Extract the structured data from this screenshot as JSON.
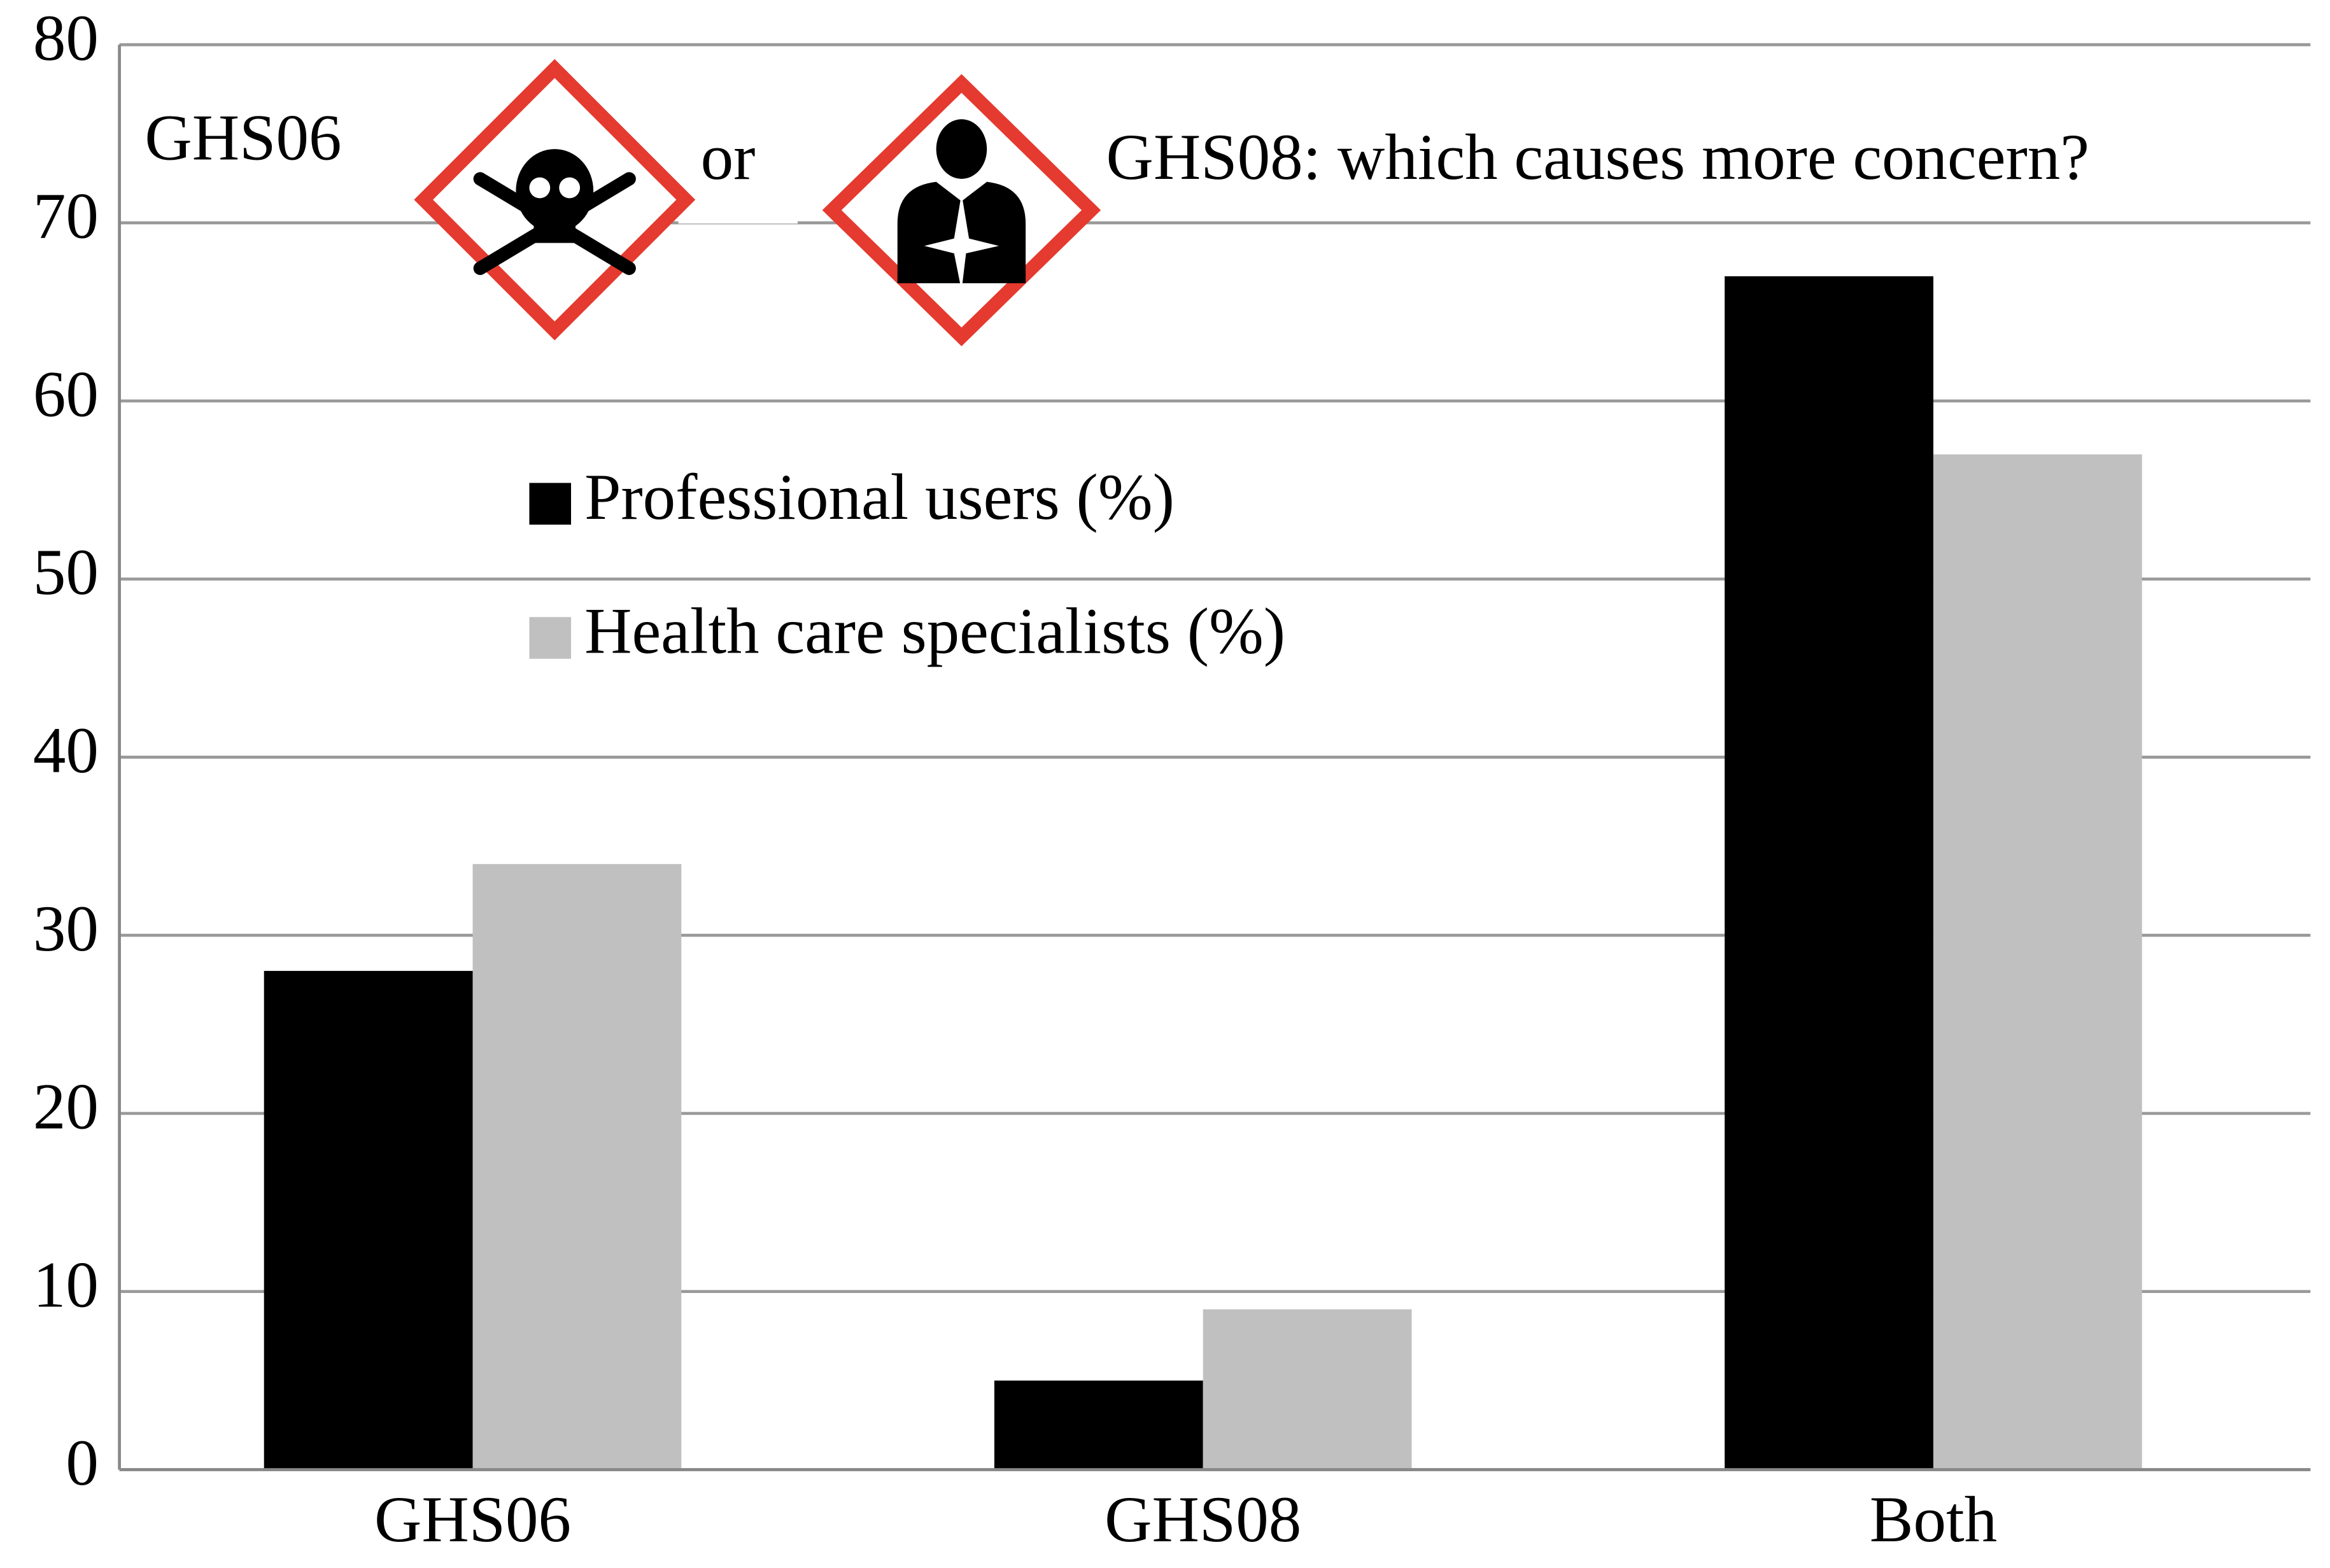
{
  "chart_data": {
    "type": "bar",
    "title_parts": [
      "GHS06",
      "or",
      "GHS08: which causes more concern?"
    ],
    "categories": [
      "GHS06",
      "GHS08",
      "Both"
    ],
    "series": [
      {
        "name": "Professional users (%)",
        "color": "#000000",
        "values": [
          28,
          5,
          67
        ]
      },
      {
        "name": "Health care specialists (%)",
        "color": "#c0c0c0",
        "values": [
          34,
          9,
          57
        ]
      }
    ],
    "ylim": [
      0,
      80
    ],
    "yticks": [
      0,
      10,
      20,
      30,
      40,
      50,
      60,
      70,
      80
    ],
    "grid": true
  }
}
